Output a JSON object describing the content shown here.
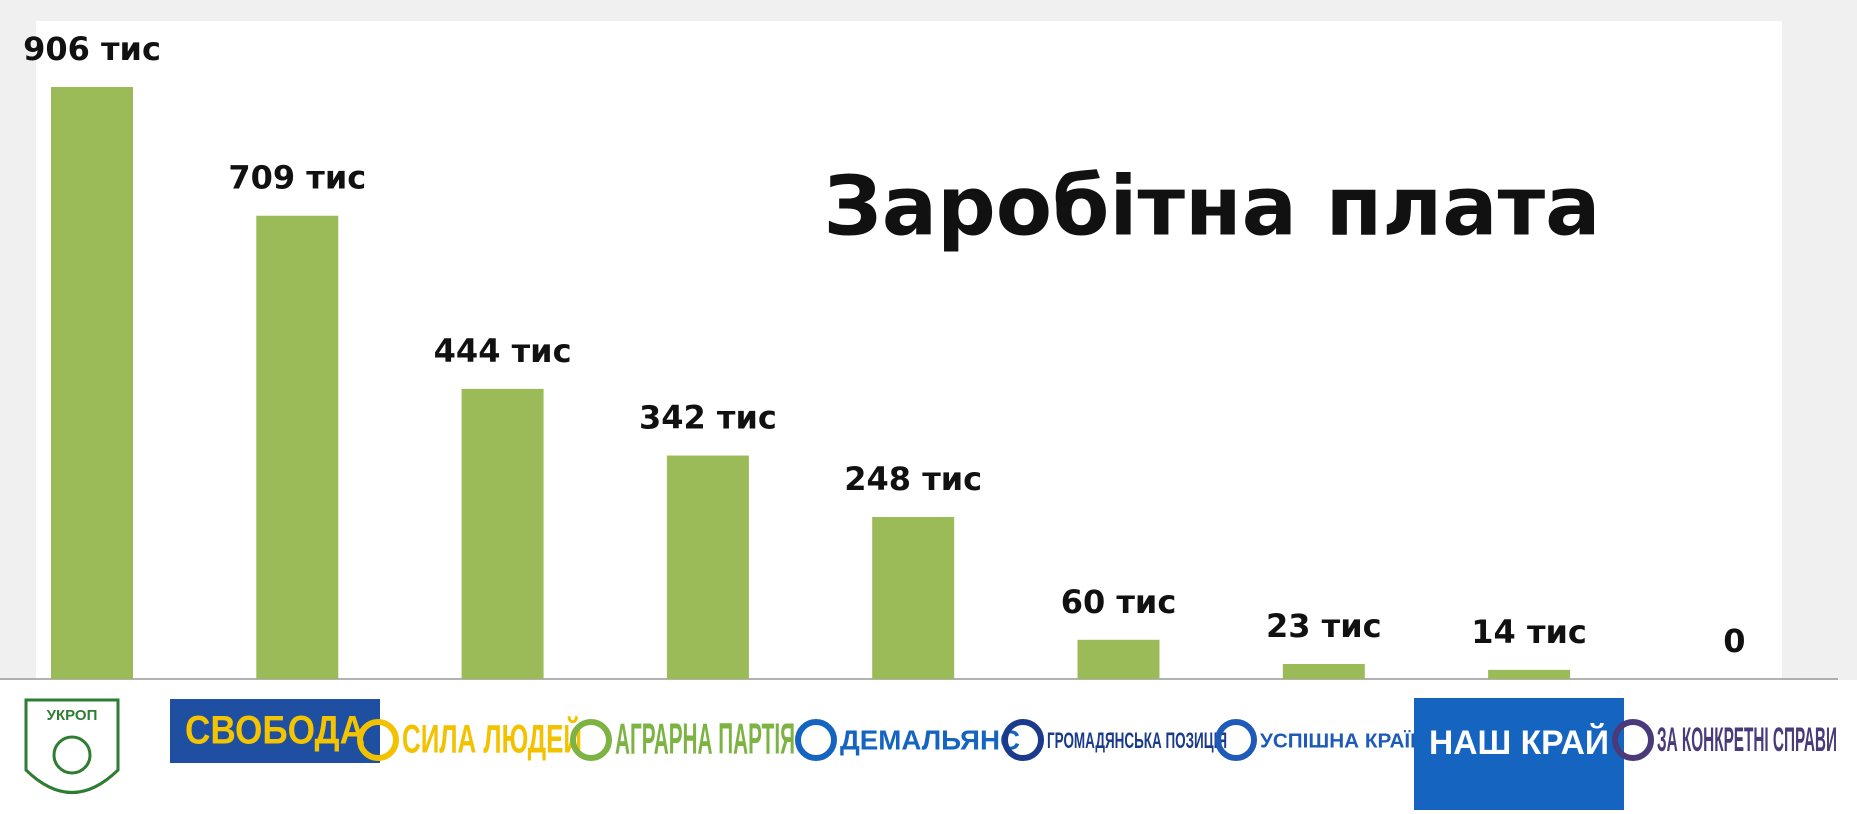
{
  "chart_data": {
    "type": "bar",
    "title": "Заробітна плата",
    "categories": [
      "УКРОП",
      "СВОБОДА",
      "СИЛА ЛЮДЕЙ",
      "АГРАРНА ПАРТІЯ",
      "ДЕМАЛЬЯНС",
      "ГРОМАДЯНСЬКА ПОЗИЦІЯ",
      "УСПІШНА КРАЇНА",
      "НАШ КРАЙ",
      "ЗА КОНКРЕТНІ СПРАВИ"
    ],
    "category_colors": [
      "#2e7d32",
      "#1f4fa0",
      "#f2c200",
      "#7cb342",
      "#1565c0",
      "#1a3b8c",
      "#1e5bb8",
      "#1565c0",
      "#4a3a7a"
    ],
    "values": [
      906,
      709,
      444,
      342,
      248,
      60,
      23,
      14,
      0
    ],
    "value_labels": [
      "906 тис",
      "709 тис",
      "444 тис",
      "342 тис",
      "248 тис",
      "60 тис",
      "23 тис",
      "14 тис",
      "0"
    ],
    "color": "#9bbb59"
  }
}
